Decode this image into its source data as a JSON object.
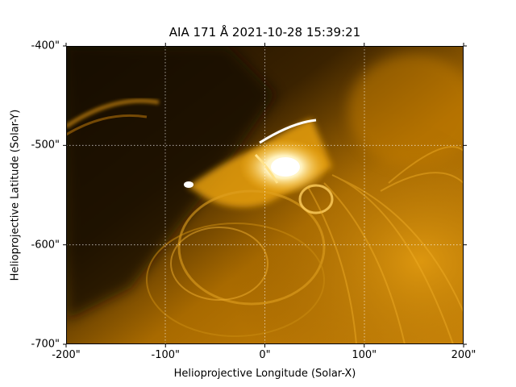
{
  "title": "AIA 171 Å 2021-10-28 15:39:21",
  "xlabel": "Helioprojective Longitude (Solar-X)",
  "ylabel": "Helioprojective Latitude (Solar-Y)",
  "x_ticks": [
    "-200\"",
    "-100\"",
    "0\"",
    "100\"",
    "200\""
  ],
  "y_ticks": [
    "-400\"",
    "-500\"",
    "-600\"",
    "-700\""
  ],
  "image": {
    "description_colormap": "sdoaia171",
    "color_dark": "#000000",
    "color_mid": "#a86a00",
    "color_bright": "#ffb81a",
    "color_saturated": "#ffffff"
  },
  "chart_data": {
    "type": "heatmap",
    "title": "AIA 171 Å 2021-10-28 15:39:21",
    "xlabel": "Helioprojective Longitude (Solar-X)",
    "ylabel": "Helioprojective Latitude (Solar-Y)",
    "xlim": [
      -200,
      200
    ],
    "ylim": [
      -700,
      -400
    ],
    "x_tick_values": [
      -200,
      -100,
      0,
      100,
      200
    ],
    "y_tick_values": [
      -400,
      -500,
      -600,
      -700
    ],
    "grid": true
  }
}
